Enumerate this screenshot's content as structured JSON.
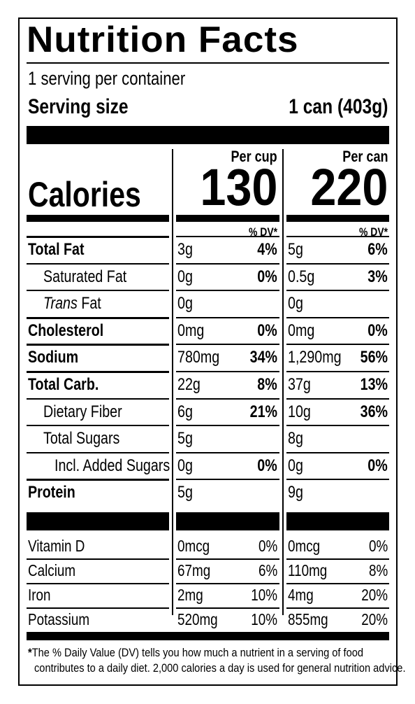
{
  "title": "Nutrition Facts",
  "servings_per_container": "1 serving per container",
  "serving_size_label": "Serving size",
  "serving_size_value": "1 can (403g)",
  "calories_label": "Calories",
  "columns": [
    {
      "header": "Per cup",
      "calories": "130",
      "dv_header": "% DV*"
    },
    {
      "header": "Per can",
      "calories": "220",
      "dv_header": "% DV*"
    }
  ],
  "nutrients": [
    {
      "name": "Total Fat",
      "style": "bold",
      "per_cup": {
        "amount": "3g",
        "dv": "4%"
      },
      "per_can": {
        "amount": "5g",
        "dv": "6%"
      }
    },
    {
      "name": "Saturated Fat",
      "style": "indent",
      "per_cup": {
        "amount": "0g",
        "dv": "0%"
      },
      "per_can": {
        "amount": "0.5g",
        "dv": "3%"
      }
    },
    {
      "name_italic": "Trans",
      "name": " Fat",
      "style": "indent",
      "per_cup": {
        "amount": "0g",
        "dv": ""
      },
      "per_can": {
        "amount": "0g",
        "dv": ""
      }
    },
    {
      "name": "Cholesterol",
      "style": "bold",
      "per_cup": {
        "amount": "0mg",
        "dv": "0%"
      },
      "per_can": {
        "amount": "0mg",
        "dv": "0%"
      }
    },
    {
      "name": "Sodium",
      "style": "bold",
      "per_cup": {
        "amount": "780mg",
        "dv": "34%"
      },
      "per_can": {
        "amount": "1,290mg",
        "dv": "56%"
      }
    },
    {
      "name": "Total Carb.",
      "style": "bold",
      "per_cup": {
        "amount": "22g",
        "dv": "8%"
      },
      "per_can": {
        "amount": "37g",
        "dv": "13%"
      }
    },
    {
      "name": "Dietary Fiber",
      "style": "indent",
      "per_cup": {
        "amount": "6g",
        "dv": "21%"
      },
      "per_can": {
        "amount": "10g",
        "dv": "36%"
      }
    },
    {
      "name": "Total Sugars",
      "style": "indent",
      "per_cup": {
        "amount": "5g",
        "dv": ""
      },
      "per_can": {
        "amount": "8g",
        "dv": ""
      }
    },
    {
      "name": "Incl. Added Sugars",
      "style": "indent2",
      "per_cup": {
        "amount": "0g",
        "dv": "0%"
      },
      "per_can": {
        "amount": "0g",
        "dv": "0%"
      }
    },
    {
      "name": "Protein",
      "style": "bold",
      "per_cup": {
        "amount": "5g",
        "dv": ""
      },
      "per_can": {
        "amount": "9g",
        "dv": ""
      }
    }
  ],
  "vitamins": [
    {
      "name": "Vitamin D",
      "per_cup": {
        "amount": "0mcg",
        "dv": "0%"
      },
      "per_can": {
        "amount": "0mcg",
        "dv": "0%"
      }
    },
    {
      "name": "Calcium",
      "per_cup": {
        "amount": "67mg",
        "dv": "6%"
      },
      "per_can": {
        "amount": "110mg",
        "dv": "8%"
      }
    },
    {
      "name": "Iron",
      "per_cup": {
        "amount": "2mg",
        "dv": "10%"
      },
      "per_can": {
        "amount": "4mg",
        "dv": "20%"
      }
    },
    {
      "name": "Potassium",
      "per_cup": {
        "amount": "520mg",
        "dv": "10%"
      },
      "per_can": {
        "amount": "855mg",
        "dv": "20%"
      }
    }
  ],
  "footnote_line1": "The % Daily Value (DV) tells you how much a nutrient in a serving of food",
  "footnote_line2": "contributes to a daily diet. 2,000 calories a day is used for general nutrition advice."
}
